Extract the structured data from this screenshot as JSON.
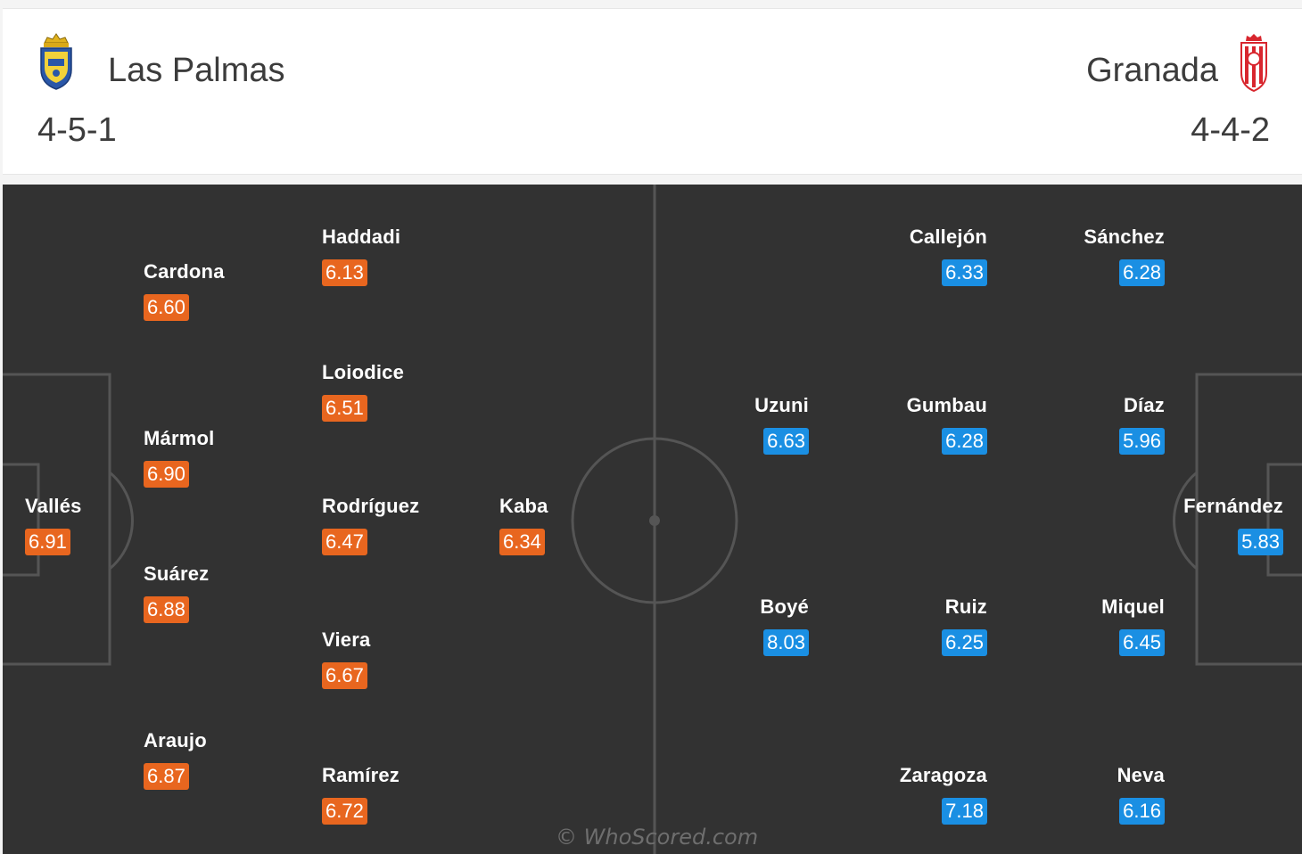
{
  "home": {
    "team": "Las Palmas",
    "formation": "4-5-1",
    "crest_icon": "las-palmas-crest",
    "color": "#e8661f"
  },
  "away": {
    "team": "Granada",
    "formation": "4-4-2",
    "crest_icon": "granada-crest",
    "color": "#1a8fe3"
  },
  "players": {
    "home": [
      {
        "name": "Vallés",
        "rating": "6.91"
      },
      {
        "name": "Cardona",
        "rating": "6.60"
      },
      {
        "name": "Mármol",
        "rating": "6.90"
      },
      {
        "name": "Suárez",
        "rating": "6.88"
      },
      {
        "name": "Araujo",
        "rating": "6.87"
      },
      {
        "name": "Haddadi",
        "rating": "6.13"
      },
      {
        "name": "Loiodice",
        "rating": "6.51"
      },
      {
        "name": "Rodríguez",
        "rating": "6.47"
      },
      {
        "name": "Viera",
        "rating": "6.67"
      },
      {
        "name": "Ramírez",
        "rating": "6.72"
      },
      {
        "name": "Kaba",
        "rating": "6.34"
      }
    ],
    "away": [
      {
        "name": "Callejón",
        "rating": "6.33"
      },
      {
        "name": "Sánchez",
        "rating": "6.28"
      },
      {
        "name": "Uzuni",
        "rating": "6.63"
      },
      {
        "name": "Gumbau",
        "rating": "6.28"
      },
      {
        "name": "Díaz",
        "rating": "5.96"
      },
      {
        "name": "Fernández",
        "rating": "5.83"
      },
      {
        "name": "Boyé",
        "rating": "8.03"
      },
      {
        "name": "Ruiz",
        "rating": "6.25"
      },
      {
        "name": "Miquel",
        "rating": "6.45"
      },
      {
        "name": "Zaragoza",
        "rating": "7.18"
      },
      {
        "name": "Neva",
        "rating": "6.16"
      }
    ]
  },
  "watermark": "© WhoScored.com"
}
